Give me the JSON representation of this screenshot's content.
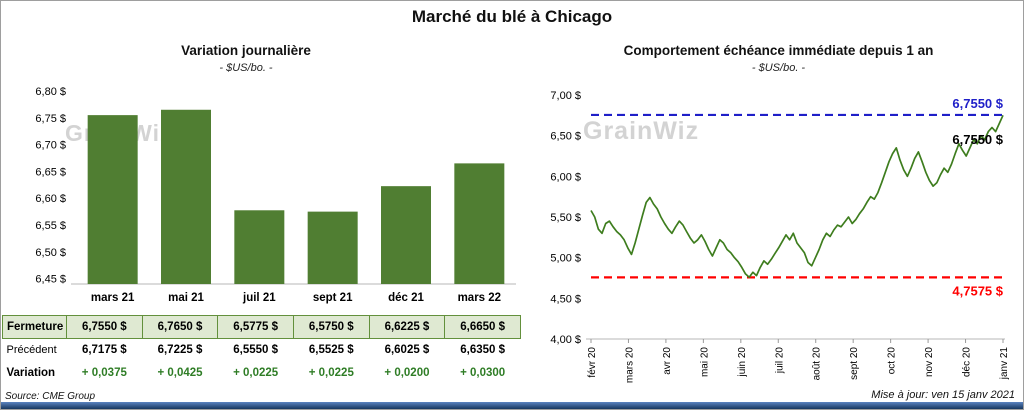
{
  "page": {
    "title": "Marché du blé à Chicago",
    "source": "Source: CME Group",
    "updated": "Mise à jour: ven 15 janv 2021",
    "watermark": "GrainWiz"
  },
  "chart_data": [
    {
      "type": "bar",
      "title": "Variation journalière",
      "subtitle": "- $US/bo. -",
      "categories": [
        "mars 21",
        "mai 21",
        "juil 21",
        "sept 21",
        "déc 21",
        "mars 22"
      ],
      "values": [
        6.755,
        6.765,
        6.5775,
        6.575,
        6.6225,
        6.665
      ],
      "ylim": [
        6.44,
        6.8
      ],
      "yticks": [
        6.45,
        6.5,
        6.55,
        6.6,
        6.65,
        6.7,
        6.75,
        6.8
      ],
      "ytick_labels": [
        "6,45 $",
        "6,50 $",
        "6,55 $",
        "6,60 $",
        "6,65 $",
        "6,70 $",
        "6,75 $",
        "6,80 $"
      ],
      "bar_color": "#507e32",
      "grid": false,
      "legend": "none"
    },
    {
      "type": "line",
      "title": "Comportement échéance immédiate depuis 1 an",
      "subtitle": "- $US/bo. -",
      "x_labels": [
        "févr 20",
        "mars 20",
        "avr 20",
        "mai 20",
        "juin 20",
        "juil 20",
        "août 20",
        "sept 20",
        "oct 20",
        "nov 20",
        "déc 20",
        "janv 21"
      ],
      "ylim": [
        4.0,
        7.0
      ],
      "yticks": [
        4.0,
        4.5,
        5.0,
        5.5,
        6.0,
        6.5,
        7.0
      ],
      "ytick_labels": [
        "4,00 $",
        "4,50 $",
        "5,00 $",
        "5,50 $",
        "6,00 $",
        "6,50 $",
        "7,00 $"
      ],
      "line_color": "#3e7d1e",
      "grid": false,
      "legend": "none",
      "ref_lines": [
        {
          "value": 6.755,
          "color": "#1f1fc8",
          "label": "6,7550 $"
        },
        {
          "value": 4.7575,
          "color": "#ff0000",
          "label": "4,7575 $"
        }
      ],
      "end_label": "6,7550 $",
      "values": [
        5.58,
        5.5,
        5.35,
        5.3,
        5.42,
        5.45,
        5.38,
        5.32,
        5.28,
        5.22,
        5.12,
        5.04,
        5.18,
        5.35,
        5.52,
        5.68,
        5.74,
        5.66,
        5.6,
        5.5,
        5.42,
        5.35,
        5.3,
        5.38,
        5.45,
        5.4,
        5.32,
        5.24,
        5.18,
        5.22,
        5.28,
        5.2,
        5.1,
        5.02,
        5.12,
        5.22,
        5.18,
        5.1,
        5.06,
        5.0,
        4.95,
        4.88,
        4.8,
        4.76,
        4.82,
        4.78,
        4.88,
        4.96,
        4.92,
        4.98,
        5.05,
        5.12,
        5.2,
        5.28,
        5.22,
        5.3,
        5.18,
        5.12,
        5.06,
        4.94,
        4.9,
        5.0,
        5.1,
        5.22,
        5.3,
        5.26,
        5.34,
        5.4,
        5.38,
        5.44,
        5.5,
        5.42,
        5.47,
        5.54,
        5.6,
        5.68,
        5.75,
        5.72,
        5.8,
        5.92,
        6.05,
        6.18,
        6.28,
        6.35,
        6.2,
        6.08,
        6.0,
        6.1,
        6.22,
        6.3,
        6.18,
        6.05,
        5.95,
        5.88,
        5.92,
        6.02,
        6.1,
        6.05,
        6.15,
        6.28,
        6.4,
        6.32,
        6.25,
        6.35,
        6.45,
        6.4,
        6.5,
        6.45,
        6.55,
        6.6,
        6.55,
        6.65,
        6.75
      ]
    }
  ],
  "table": {
    "rows": [
      {
        "label": "Fermeture",
        "cells": [
          "6,7550  $",
          "6,7650  $",
          "6,5775  $",
          "6,5750  $",
          "6,6225  $",
          "6,6650  $"
        ]
      },
      {
        "label": "Précédent",
        "cells": [
          "6,7175  $",
          "6,7225  $",
          "6,5550  $",
          "6,5525  $",
          "6,6025  $",
          "6,6350  $"
        ]
      },
      {
        "label": "Variation",
        "cells": [
          "+ 0,0375",
          "+ 0,0425",
          "+ 0,0225",
          "+ 0,0225",
          "+ 0,0200",
          "+ 0,0300"
        ]
      }
    ]
  }
}
